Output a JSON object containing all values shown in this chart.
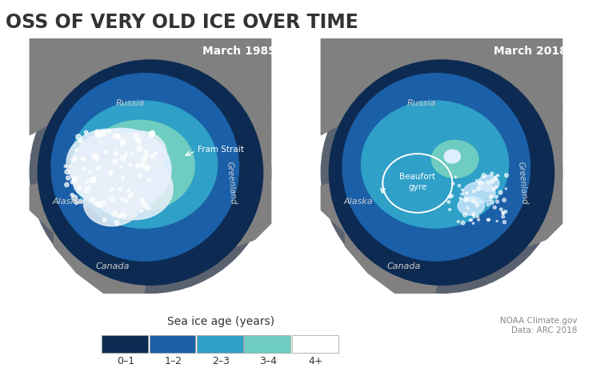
{
  "title": "OSS OF VERY OLD ICE OVER TIME",
  "background_color": "#ffffff",
  "map_bg_color": "#808080",
  "left_label": "March 1985",
  "right_label": "March 2018",
  "legend_title": "Sea ice age (years)",
  "legend_categories": [
    "0–1",
    "1–2",
    "2–3",
    "3–4",
    "4+"
  ],
  "legend_colors": [
    "#0d2b52",
    "#1a5fa8",
    "#2fa0c8",
    "#6ecdc0",
    "#ffffff"
  ],
  "legend_border_color": "#999999",
  "noaa_credit": "NOAA Climate.gov\nData: ARC 2018",
  "font_sizes": {
    "title": 17,
    "map_label": 10,
    "region_label": 8,
    "legend_title": 10,
    "legend_tick": 9,
    "credit": 7.5
  },
  "title_color": "#333333",
  "region_label_color": "#cccccc",
  "ocean_color": "#5a6270",
  "land_color": "#808080"
}
